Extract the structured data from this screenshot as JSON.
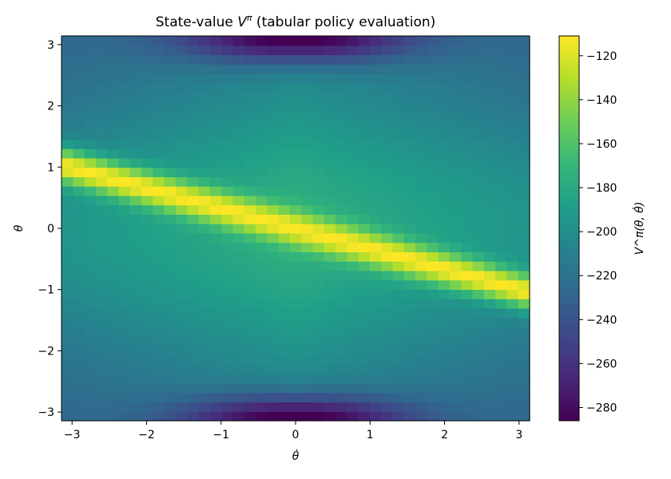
{
  "chart_data": {
    "type": "heatmap",
    "title_main": "State-value ",
    "title_symbol": "V",
    "title_superscript": "π",
    "title_rest": " (tabular policy evaluation)",
    "xlabel": "θ̇",
    "ylabel": "θ",
    "colorbar_label": "V^π(θ, θ̇)",
    "colormap": "viridis",
    "x_range": [
      -3.14159,
      3.14159
    ],
    "y_range": [
      -3.14159,
      3.14159
    ],
    "value_range": [
      -286,
      -111
    ],
    "grid_size": [
      41,
      41
    ],
    "x_ticks": [
      -3,
      -2,
      -1,
      0,
      1,
      2,
      3
    ],
    "x_tick_labels": [
      "−3",
      "−2",
      "−1",
      "0",
      "1",
      "2",
      "3"
    ],
    "y_ticks": [
      -3,
      -2,
      -1,
      0,
      1,
      2,
      3
    ],
    "y_tick_labels": [
      "−3",
      "−2",
      "−1",
      "0",
      "1",
      "2",
      "3"
    ],
    "colorbar_ticks": [
      -120,
      -140,
      -160,
      -180,
      -200,
      -220,
      -240,
      -260,
      -280
    ],
    "colorbar_tick_labels": [
      "−120",
      "−140",
      "−160",
      "−180",
      "−200",
      "−220",
      "−240",
      "−260",
      "−280"
    ],
    "ridge": {
      "description": "maximum value band along theta = -0.33 * theta_dot",
      "slope": -0.33,
      "peak_value": -111
    },
    "minima": [
      {
        "theta_dot": 0,
        "theta": 3.14159,
        "value": -286
      },
      {
        "theta_dot": 0,
        "theta": -3.14159,
        "value": -286
      }
    ]
  }
}
